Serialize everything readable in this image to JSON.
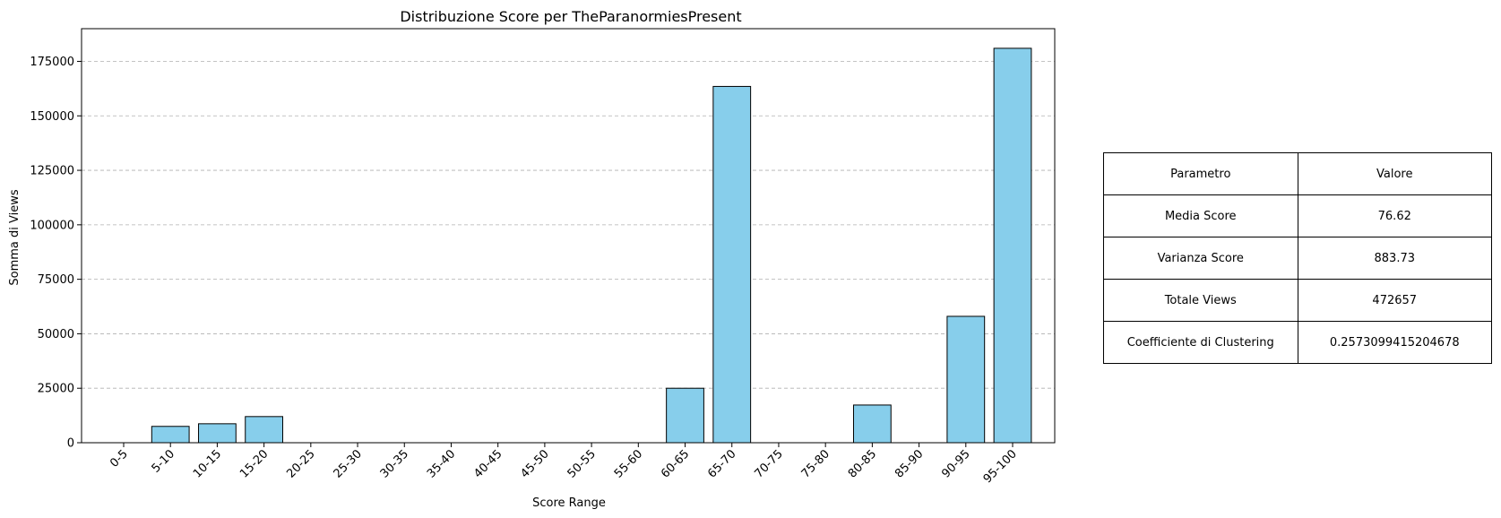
{
  "chart_data": {
    "type": "bar",
    "title": "Distribuzione Score per TheParanormiesPresent",
    "xlabel": "Score Range",
    "ylabel": "Somma di Views",
    "categories": [
      "0-5",
      "5-10",
      "10-15",
      "15-20",
      "20-25",
      "25-30",
      "30-35",
      "35-40",
      "40-45",
      "45-50",
      "50-55",
      "55-60",
      "60-65",
      "65-70",
      "70-75",
      "75-80",
      "80-85",
      "85-90",
      "90-95",
      "95-100"
    ],
    "values": [
      0,
      7500,
      8700,
      12000,
      0,
      0,
      0,
      0,
      0,
      0,
      0,
      0,
      25000,
      163500,
      0,
      0,
      17300,
      0,
      58000,
      181000
    ],
    "ylim": [
      0,
      190000
    ],
    "yticks": [
      0,
      25000,
      50000,
      75000,
      100000,
      125000,
      150000,
      175000
    ],
    "grid": "y dashed",
    "bar_color": "#87CEEB",
    "edge_color": "#000000"
  },
  "table": {
    "header": [
      "Parametro",
      "Valore"
    ],
    "rows": [
      [
        "Media Score",
        "76.62"
      ],
      [
        "Varianza Score",
        "883.73"
      ],
      [
        "Totale Views",
        "472657"
      ],
      [
        "Coefficiente di Clustering",
        "0.2573099415204678"
      ]
    ]
  }
}
